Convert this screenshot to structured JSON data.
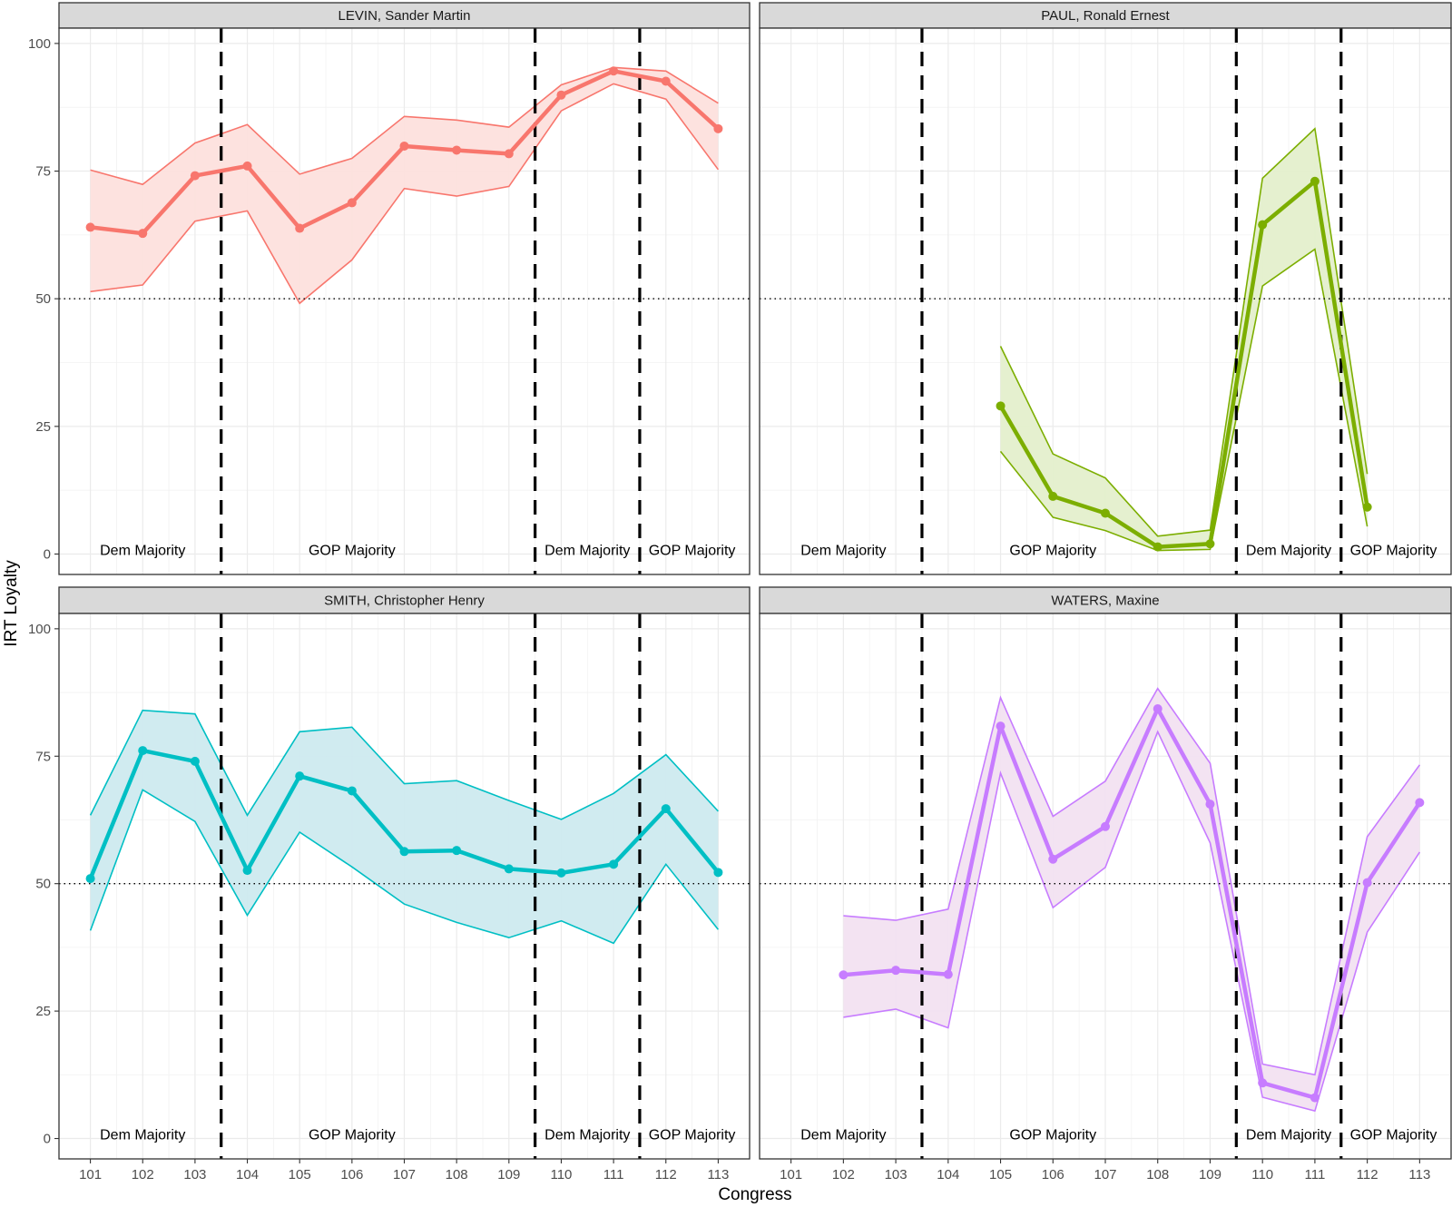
{
  "chart_data": {
    "type": "line",
    "xlabel": "Congress",
    "ylabel": "IRT Loyalty",
    "x": [
      101,
      102,
      103,
      104,
      105,
      106,
      107,
      108,
      109,
      110,
      111,
      112,
      113
    ],
    "xlim": [
      100.4,
      113.6
    ],
    "ylim": [
      -4,
      103
    ],
    "yticks": [
      0,
      25,
      50,
      75,
      100
    ],
    "reference_line": {
      "y": 50,
      "style": "dotted"
    },
    "majority_breaks": [
      103.5,
      109.5,
      111.5
    ],
    "majority_regions": [
      {
        "label": "Dem Majority",
        "x": 102
      },
      {
        "label": "GOP Majority",
        "x": 106
      },
      {
        "label": "Dem Majority",
        "x": 110.5
      },
      {
        "label": "GOP Majority",
        "x": 112.5
      }
    ],
    "panels": [
      {
        "title": "LEVIN, Sander Martin",
        "color": "#F8766D",
        "fill": "#FDE0DD",
        "x": [
          101,
          102,
          103,
          104,
          105,
          106,
          107,
          108,
          109,
          110,
          111,
          112,
          113
        ],
        "mean": [
          64,
          62.8,
          74.1,
          76,
          63.8,
          68.8,
          79.9,
          79.1,
          78.4,
          89.9,
          94.6,
          92.6,
          83.3
        ],
        "upper": [
          75.2,
          72.4,
          80.5,
          84.1,
          74.4,
          77.5,
          85.7,
          85,
          83.6,
          91.9,
          95.3,
          94.6,
          88.3
        ],
        "lower": [
          51.4,
          52.7,
          65.2,
          67.2,
          49.1,
          57.6,
          71.6,
          70.1,
          72,
          86.8,
          92.1,
          89.1,
          75.3
        ]
      },
      {
        "title": "PAUL, Ronald Ernest",
        "color": "#7CAE00",
        "fill": "#E4EFCC",
        "x": [
          105,
          106,
          107,
          108,
          109,
          110,
          111,
          112
        ],
        "mean": [
          29,
          11.3,
          8,
          1.4,
          2,
          64.5,
          73,
          9.2
        ],
        "upper": [
          40.7,
          19.6,
          14.9,
          3.5,
          4.7,
          73.6,
          83.3,
          15.7
        ],
        "lower": [
          20.1,
          7.2,
          4.6,
          0.7,
          0.9,
          52.5,
          59.7,
          5.4
        ]
      },
      {
        "title": "SMITH, Christopher Henry",
        "color": "#00BFC4",
        "fill": "#CDEAEF",
        "x": [
          101,
          102,
          103,
          104,
          105,
          106,
          107,
          108,
          109,
          110,
          111,
          112,
          113
        ],
        "mean": [
          51,
          76.1,
          74,
          52.6,
          71.1,
          68.2,
          56.3,
          56.5,
          52.9,
          52.1,
          53.8,
          64.7,
          52.2
        ],
        "upper": [
          63.4,
          84,
          83.3,
          63.4,
          79.8,
          80.7,
          69.6,
          70.2,
          66.3,
          62.6,
          67.7,
          75.3,
          64.2
        ],
        "lower": [
          40.8,
          68.4,
          62.2,
          43.8,
          60.1,
          53.3,
          46,
          42.4,
          39.4,
          42.7,
          38.3,
          53.8,
          41
        ]
      },
      {
        "title": "WATERS, Maxine",
        "color": "#C77CFF",
        "fill": "#F2E1F1",
        "x": [
          102,
          103,
          104,
          105,
          106,
          107,
          108,
          109,
          110,
          111,
          112,
          113
        ],
        "mean": [
          32.1,
          33,
          32.2,
          80.9,
          54.8,
          61.2,
          84.3,
          65.6,
          10.9,
          8,
          50.2,
          65.9
        ],
        "upper": [
          43.7,
          42.8,
          45,
          86.5,
          63.2,
          70.1,
          88.3,
          73.6,
          14.6,
          12.5,
          59.2,
          73.3
        ],
        "lower": [
          23.8,
          25.4,
          21.7,
          71.7,
          45.3,
          53.2,
          79.8,
          58,
          8.1,
          5.4,
          40.5,
          56.2
        ]
      }
    ]
  }
}
